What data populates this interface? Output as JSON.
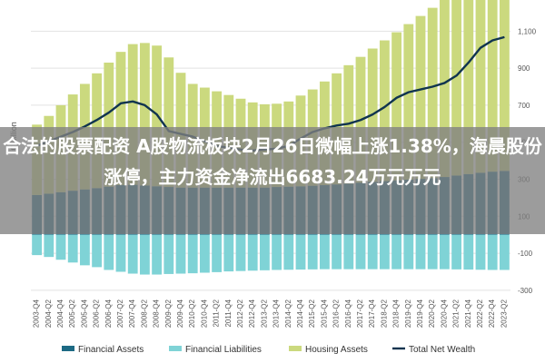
{
  "chart_data": {
    "type": "bar",
    "ylabel": "€ Billion",
    "yticks": [
      1100,
      900,
      700,
      500,
      300,
      100,
      -100,
      -300
    ],
    "ylim": [
      -330,
      1180
    ],
    "categories": [
      "2003-Q4",
      "2004-Q2",
      "2004-Q4",
      "2005-Q2",
      "2005-Q4",
      "2006-Q2",
      "2006-Q4",
      "2007-Q2",
      "2007-Q4",
      "2008-Q2",
      "2008-Q4",
      "2009-Q2",
      "2009-Q4",
      "2010-Q2",
      "2010-Q4",
      "2011-Q2",
      "2011-Q4",
      "2012-Q2",
      "2012-Q4",
      "2013-Q2",
      "2013-Q4",
      "2014-Q2",
      "2014-Q4",
      "2015-Q2",
      "2015-Q4",
      "2016-Q2",
      "2016-Q4",
      "2017-Q2",
      "2017-Q4",
      "2018-Q2",
      "2018-Q4",
      "2019-Q2",
      "2019-Q4",
      "2020-Q2",
      "2020-Q4",
      "2021-Q2",
      "2021-Q4",
      "2022-Q2",
      "2022-Q4",
      "2023-Q2"
    ],
    "series": [
      {
        "name": "Financial Assets",
        "color": "#1d6a84",
        "values": [
          215,
          222,
          230,
          238,
          245,
          252,
          260,
          268,
          270,
          266,
          262,
          258,
          255,
          255,
          255,
          255,
          255,
          255,
          255,
          255,
          258,
          260,
          262,
          265,
          268,
          272,
          276,
          281,
          286,
          290,
          294,
          298,
          302,
          306,
          312,
          320,
          328,
          335,
          341,
          345
        ]
      },
      {
        "name": "Financial Liabilities",
        "color": "#7fd3d6",
        "values": [
          -110,
          -120,
          -135,
          -150,
          -165,
          -175,
          -190,
          -200,
          -210,
          -215,
          -215,
          -212,
          -210,
          -208,
          -205,
          -202,
          -198,
          -196,
          -194,
          -192,
          -190,
          -189,
          -188,
          -187,
          -186,
          -186,
          -186,
          -186,
          -186,
          -186,
          -186,
          -186,
          -186,
          -186,
          -186,
          -187,
          -188,
          -189,
          -190,
          -190
        ]
      },
      {
        "name": "Housing Assets",
        "color": "#cbd97e",
        "values": [
          380,
          420,
          470,
          520,
          570,
          620,
          670,
          720,
          760,
          770,
          760,
          700,
          620,
          560,
          540,
          520,
          500,
          480,
          460,
          450,
          450,
          460,
          490,
          520,
          560,
          600,
          640,
          680,
          720,
          760,
          800,
          840,
          880,
          920,
          960,
          1010,
          1060,
          1100,
          1120,
          1115
        ]
      },
      {
        "name": "Total Net Wealth",
        "color": "#10344f",
        "values": [
          480,
          505,
          530,
          555,
          585,
          620,
          660,
          710,
          720,
          700,
          650,
          560,
          545,
          530,
          505,
          480,
          470,
          460,
          455,
          460,
          465,
          480,
          520,
          555,
          575,
          590,
          600,
          620,
          650,
          690,
          740,
          770,
          785,
          800,
          820,
          860,
          930,
          1010,
          1050,
          1068
        ]
      }
    ]
  },
  "overlay": {
    "headline": "合法的股票配资 A股物流板块2月26日微幅上涨1.38%，海晨股份涨停，主力资金净流出6683.24万元万元"
  }
}
